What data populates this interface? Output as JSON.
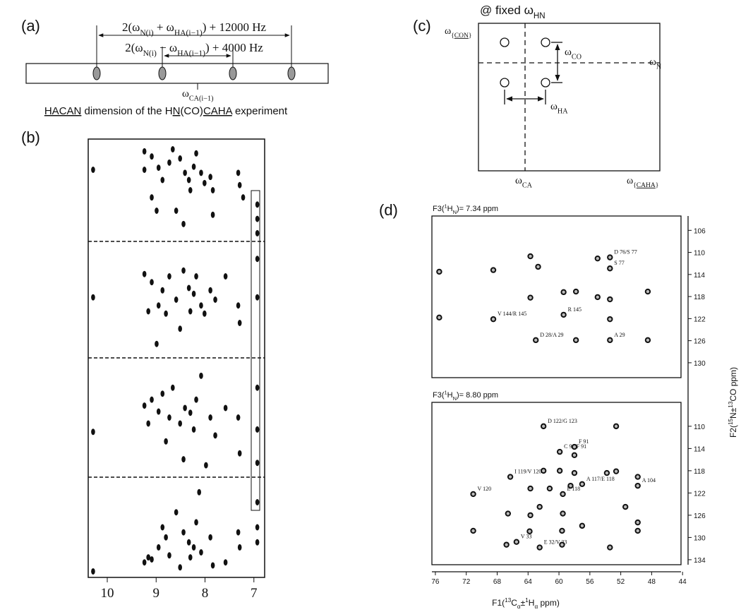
{
  "panel_a": {
    "label": "(a)",
    "outer_formula": [
      {
        "t": "2(ω"
      },
      {
        "t": "N(i)",
        "sub": true
      },
      {
        "t": " + ω"
      },
      {
        "t": "HA(i−1)",
        "sub": true
      },
      {
        "t": ") + 12000 Hz"
      }
    ],
    "inner_formula": [
      {
        "t": "2(ω"
      },
      {
        "t": "N(i)",
        "sub": true
      },
      {
        "t": " − ω"
      },
      {
        "t": "HA(i−1)",
        "sub": true
      },
      {
        "t": ") + 4000 Hz"
      }
    ],
    "center_label": [
      {
        "t": "ω"
      },
      {
        "t": "CA(i−1)",
        "sub": true
      }
    ],
    "caption": [
      {
        "t": "HACAN",
        "u": true
      },
      {
        "t": " dimension of the H"
      },
      {
        "t": "N",
        "u": true
      },
      {
        "t": "(CO)"
      },
      {
        "t": "CAHA",
        "u": true
      },
      {
        "t": " experiment"
      }
    ]
  },
  "panel_b": {
    "label": "(b)",
    "xlim": [
      10.39,
      6.78
    ],
    "xticks": [
      10,
      9,
      8,
      7
    ],
    "strips": [
      {
        "peaks": [
          [
            10.29,
            0.3
          ],
          [
            9.24,
            0.12
          ],
          [
            9.09,
            0.17
          ],
          [
            9.24,
            0.3
          ],
          [
            8.95,
            0.28
          ],
          [
            8.87,
            0.4
          ],
          [
            8.73,
            0.23
          ],
          [
            8.66,
            0.1
          ],
          [
            8.51,
            0.19
          ],
          [
            8.41,
            0.33
          ],
          [
            8.33,
            0.4
          ],
          [
            8.3,
            0.5
          ],
          [
            8.23,
            0.27
          ],
          [
            8.18,
            0.14
          ],
          [
            8.08,
            0.33
          ],
          [
            8.01,
            0.43
          ],
          [
            7.89,
            0.37
          ],
          [
            7.84,
            0.5
          ],
          [
            7.32,
            0.33
          ],
          [
            7.29,
            0.45
          ],
          [
            7.22,
            0.57
          ],
          [
            8.44,
            0.83
          ],
          [
            7.84,
            0.74
          ],
          [
            9.09,
            0.57
          ],
          [
            8.99,
            0.7
          ],
          [
            8.59,
            0.7
          ],
          [
            6.93,
            0.64
          ],
          [
            6.93,
            0.78
          ],
          [
            6.93,
            0.92
          ]
        ]
      },
      {
        "peaks": [
          [
            10.29,
            0.48
          ],
          [
            9.24,
            0.28
          ],
          [
            9.09,
            0.35
          ],
          [
            8.95,
            0.55
          ],
          [
            8.87,
            0.42
          ],
          [
            8.73,
            0.3
          ],
          [
            8.59,
            0.5
          ],
          [
            8.44,
            0.25
          ],
          [
            8.33,
            0.4
          ],
          [
            8.3,
            0.6
          ],
          [
            8.23,
            0.45
          ],
          [
            8.18,
            0.3
          ],
          [
            8.08,
            0.55
          ],
          [
            7.89,
            0.42
          ],
          [
            7.79,
            0.5
          ],
          [
            7.58,
            0.3
          ],
          [
            7.32,
            0.55
          ],
          [
            7.29,
            0.7
          ],
          [
            9.16,
            0.6
          ],
          [
            8.8,
            0.62
          ],
          [
            8.51,
            0.75
          ],
          [
            8.01,
            0.62
          ],
          [
            8.99,
            0.88
          ],
          [
            6.93,
            0.15
          ],
          [
            6.93,
            0.48
          ]
        ]
      },
      {
        "peaks": [
          [
            10.29,
            0.62
          ],
          [
            9.24,
            0.4
          ],
          [
            9.09,
            0.35
          ],
          [
            8.95,
            0.45
          ],
          [
            8.87,
            0.3
          ],
          [
            8.73,
            0.5
          ],
          [
            8.66,
            0.25
          ],
          [
            8.51,
            0.55
          ],
          [
            8.41,
            0.42
          ],
          [
            8.3,
            0.46
          ],
          [
            8.23,
            0.6
          ],
          [
            8.18,
            0.35
          ],
          [
            8.08,
            0.15
          ],
          [
            7.89,
            0.5
          ],
          [
            7.79,
            0.65
          ],
          [
            7.58,
            0.42
          ],
          [
            7.32,
            0.5
          ],
          [
            7.29,
            0.8
          ],
          [
            9.16,
            0.55
          ],
          [
            8.8,
            0.7
          ],
          [
            8.44,
            0.85
          ],
          [
            7.98,
            0.9
          ],
          [
            6.93,
            0.25
          ],
          [
            6.93,
            0.6
          ],
          [
            6.93,
            0.88
          ]
        ]
      },
      {
        "peaks": [
          [
            10.29,
            0.94
          ],
          [
            9.24,
            0.85
          ],
          [
            9.09,
            0.82
          ],
          [
            8.95,
            0.7
          ],
          [
            8.87,
            0.5
          ],
          [
            8.73,
            0.78
          ],
          [
            8.59,
            0.35
          ],
          [
            8.44,
            0.55
          ],
          [
            8.33,
            0.65
          ],
          [
            8.3,
            0.8
          ],
          [
            8.23,
            0.7
          ],
          [
            8.18,
            0.45
          ],
          [
            8.08,
            0.75
          ],
          [
            7.89,
            0.6
          ],
          [
            7.84,
            0.88
          ],
          [
            7.58,
            0.85
          ],
          [
            7.32,
            0.55
          ],
          [
            7.29,
            0.7
          ],
          [
            9.16,
            0.8
          ],
          [
            8.8,
            0.6
          ],
          [
            8.51,
            0.9
          ],
          [
            8.12,
            0.15
          ],
          [
            6.93,
            0.25
          ],
          [
            6.93,
            0.5
          ],
          [
            6.93,
            0.65
          ]
        ]
      }
    ]
  },
  "panel_c": {
    "label": "(c)",
    "header": [
      {
        "t": "@ fixed ω"
      },
      {
        "t": "HN",
        "sub": true
      }
    ],
    "y_dim": [
      {
        "t": "ω"
      },
      {
        "t": "{",
        "sub": true
      },
      {
        "t": "CON",
        "sub": true,
        "u": true
      },
      {
        "t": "}",
        "sub": true
      }
    ],
    "n_label": [
      {
        "t": "ω"
      },
      {
        "t": "N",
        "sub": true
      }
    ],
    "co_label": [
      {
        "t": "ω"
      },
      {
        "t": "CO",
        "sub": true
      }
    ],
    "ha_label": [
      {
        "t": "ω"
      },
      {
        "t": "HA",
        "sub": true
      }
    ],
    "ca_label": [
      {
        "t": "ω"
      },
      {
        "t": "CA",
        "sub": true
      }
    ],
    "x_dim": [
      {
        "t": "ω"
      },
      {
        "t": "{",
        "sub": true
      },
      {
        "t": "CAHA",
        "sub": true,
        "u": true
      },
      {
        "t": "}",
        "sub": true
      }
    ]
  },
  "panel_d": {
    "label": "(d)",
    "xlim": [
      76.45,
      44.2
    ],
    "xticks": [
      76,
      72,
      68,
      64,
      60,
      56,
      52,
      48,
      44
    ],
    "x_label": [
      {
        "t": "F1("
      },
      {
        "t": "13",
        "sup": true
      },
      {
        "t": "C"
      },
      {
        "t": "α",
        "sub": true
      },
      {
        "t": "±"
      },
      {
        "t": "1",
        "sup": true
      },
      {
        "t": "H"
      },
      {
        "t": "α",
        "sub": true
      },
      {
        "t": "  ppm)"
      }
    ],
    "y_label": [
      {
        "t": "F2("
      },
      {
        "t": "15",
        "sup": true
      },
      {
        "t": "N±"
      },
      {
        "t": "13",
        "sup": true
      },
      {
        "t": "CO ppm)"
      }
    ],
    "spectra": [
      {
        "title": [
          {
            "t": "F3("
          },
          {
            "t": "1",
            "sup": true
          },
          {
            "t": "H"
          },
          {
            "t": "N",
            "sub": true
          },
          {
            "t": ")= 7.34 ppm"
          }
        ],
        "ylim": [
          103.4,
          132.7
        ],
        "yticks": [
          106,
          110,
          114,
          118,
          122,
          126,
          130
        ],
        "peaks": [
          {
            "x": 75.5,
            "y": 113.5
          },
          {
            "x": 75.5,
            "y": 121.8
          },
          {
            "x": 68.5,
            "y": 113.2
          },
          {
            "x": 68.5,
            "y": 122.1,
            "label": "V 144/R 145"
          },
          {
            "x": 63.7,
            "y": 110.7
          },
          {
            "x": 63.7,
            "y": 118.2
          },
          {
            "x": 63.0,
            "y": 125.9,
            "label": "D 28/A 29"
          },
          {
            "x": 62.7,
            "y": 112.6
          },
          {
            "x": 59.4,
            "y": 117.2
          },
          {
            "x": 59.4,
            "y": 121.3,
            "label": "R 145"
          },
          {
            "x": 57.8,
            "y": 117.1
          },
          {
            "x": 57.8,
            "y": 125.9
          },
          {
            "x": 55.0,
            "y": 111.1
          },
          {
            "x": 55.0,
            "y": 118.1
          },
          {
            "x": 53.4,
            "y": 110.9,
            "label": "D 76/S 77"
          },
          {
            "x": 53.4,
            "y": 112.9,
            "label": "S 77"
          },
          {
            "x": 53.4,
            "y": 118.5
          },
          {
            "x": 53.4,
            "y": 122.1
          },
          {
            "x": 53.4,
            "y": 125.9,
            "label": "A 29"
          },
          {
            "x": 48.5,
            "y": 117.1
          },
          {
            "x": 48.5,
            "y": 125.9
          }
        ]
      },
      {
        "title": [
          {
            "t": "F3("
          },
          {
            "t": "1",
            "sup": true
          },
          {
            "t": "H"
          },
          {
            "t": "N",
            "sub": true
          },
          {
            "t": ")= 8.80 ppm"
          }
        ],
        "ylim": [
          105.7,
          134.9
        ],
        "yticks": [
          110,
          114,
          118,
          122,
          126,
          130,
          134
        ],
        "peaks": [
          {
            "x": 62.0,
            "y": 110.0,
            "label": "D 122/G 123"
          },
          {
            "x": 52.6,
            "y": 110.0
          },
          {
            "x": 59.9,
            "y": 114.6,
            "label": "C 90/F 91"
          },
          {
            "x": 58.0,
            "y": 113.7,
            "label": "F 91"
          },
          {
            "x": 58.0,
            "y": 115.2
          },
          {
            "x": 62.0,
            "y": 118.0
          },
          {
            "x": 59.9,
            "y": 118.0
          },
          {
            "x": 58.0,
            "y": 118.4
          },
          {
            "x": 53.8,
            "y": 118.4
          },
          {
            "x": 52.6,
            "y": 118.1
          },
          {
            "x": 66.3,
            "y": 119.1,
            "label": "I 119/V 120"
          },
          {
            "x": 49.8,
            "y": 119.1
          },
          {
            "x": 57.0,
            "y": 120.4,
            "label": "A 117/E 118"
          },
          {
            "x": 58.5,
            "y": 120.7
          },
          {
            "x": 63.7,
            "y": 121.2
          },
          {
            "x": 61.2,
            "y": 121.2
          },
          {
            "x": 49.8,
            "y": 120.7,
            "label": "A 104"
          },
          {
            "x": 71.1,
            "y": 122.2,
            "label": "V 120"
          },
          {
            "x": 59.5,
            "y": 122.2,
            "label": "E 118"
          },
          {
            "x": 62.5,
            "y": 124.5
          },
          {
            "x": 51.4,
            "y": 124.5
          },
          {
            "x": 66.6,
            "y": 125.7
          },
          {
            "x": 63.7,
            "y": 126.0
          },
          {
            "x": 59.5,
            "y": 125.7
          },
          {
            "x": 49.8,
            "y": 127.3
          },
          {
            "x": 71.1,
            "y": 128.8
          },
          {
            "x": 63.8,
            "y": 128.9
          },
          {
            "x": 59.6,
            "y": 128.8
          },
          {
            "x": 57.0,
            "y": 127.9
          },
          {
            "x": 49.8,
            "y": 128.8
          },
          {
            "x": 66.8,
            "y": 131.3
          },
          {
            "x": 65.5,
            "y": 130.8,
            "label": "V 33"
          },
          {
            "x": 62.5,
            "y": 131.8,
            "label": "E 32/V 33"
          },
          {
            "x": 59.6,
            "y": 131.3
          },
          {
            "x": 53.4,
            "y": 131.8
          }
        ]
      }
    ]
  }
}
